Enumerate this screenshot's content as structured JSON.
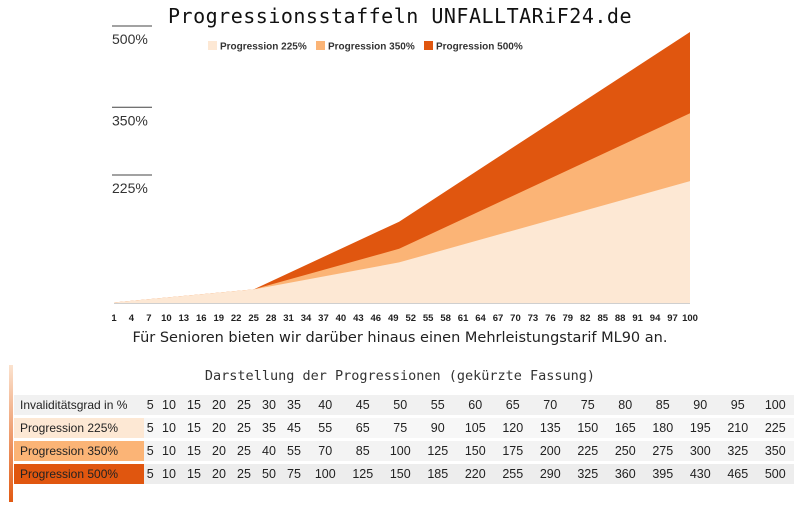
{
  "page": {
    "title": "Progressionsstaffeln UNFALLTARiF24.de",
    "subtitle": "Für Senioren bieten wir darüber hinaus einen Mehrleistungstarif ML90 an."
  },
  "chart_data": {
    "type": "area",
    "stacked": false,
    "title": "Progressionsstaffeln UNFALLTARiF24.de",
    "legend_position": "top",
    "x": [
      1,
      4,
      7,
      10,
      13,
      16,
      19,
      22,
      25,
      28,
      31,
      34,
      37,
      40,
      43,
      46,
      49,
      52,
      55,
      58,
      61,
      64,
      67,
      70,
      73,
      76,
      79,
      82,
      85,
      88,
      91,
      94,
      97,
      100
    ],
    "x_ticks": [
      "1",
      "4",
      "7",
      "10",
      "13",
      "16",
      "19",
      "22",
      "25",
      "28",
      "31",
      "34",
      "37",
      "40",
      "43",
      "46",
      "49",
      "52",
      "55",
      "58",
      "61",
      "64",
      "67",
      "70",
      "73",
      "76",
      "79",
      "82",
      "85",
      "88",
      "91",
      "94",
      "97",
      "100"
    ],
    "y_ticks": [
      {
        "value": 225,
        "label": "225%"
      },
      {
        "value": 350,
        "label": "350%"
      },
      {
        "value": 500,
        "label": "500%"
      }
    ],
    "xlim": [
      1,
      100
    ],
    "ylim": [
      0,
      500
    ],
    "series": [
      {
        "name": "Progression 500%",
        "color": "#e0560f",
        "x": [
          1,
          25,
          50,
          100
        ],
        "values": [
          1,
          25,
          150,
          500
        ]
      },
      {
        "name": "Progression 350%",
        "color": "#fbb476",
        "x": [
          1,
          25,
          50,
          100
        ],
        "values": [
          1,
          25,
          100,
          350
        ]
      },
      {
        "name": "Progression 225%",
        "color": "#fde8d4",
        "x": [
          1,
          25,
          50,
          100
        ],
        "values": [
          1,
          25,
          75,
          225
        ]
      }
    ],
    "legend": [
      {
        "label": "Progression 225%",
        "color": "#fde8d4"
      },
      {
        "label": "Progression 350%",
        "color": "#fbb476"
      },
      {
        "label": "Progression 500%",
        "color": "#e0560f"
      }
    ]
  },
  "table": {
    "title": "Darstellung der Progressionen (gekürzte Fassung)",
    "header_label": "Invaliditätsgrad in %",
    "header": [
      "5",
      "10",
      "15",
      "20",
      "25",
      "30",
      "35",
      "40",
      "45",
      "50",
      "55",
      "60",
      "65",
      "70",
      "75",
      "80",
      "85",
      "90",
      "95",
      "100"
    ],
    "rows": [
      {
        "label": "Progression 225%",
        "color": "#fde8d4",
        "values": [
          "5",
          "10",
          "15",
          "20",
          "25",
          "35",
          "45",
          "55",
          "65",
          "75",
          "90",
          "105",
          "120",
          "135",
          "150",
          "165",
          "180",
          "195",
          "210",
          "225"
        ]
      },
      {
        "label": "Progression 350%",
        "color": "#fbb476",
        "values": [
          "5",
          "10",
          "15",
          "20",
          "25",
          "40",
          "55",
          "70",
          "85",
          "100",
          "125",
          "150",
          "175",
          "200",
          "225",
          "250",
          "275",
          "300",
          "325",
          "350"
        ]
      },
      {
        "label": "Progression 500%",
        "color": "#e0560f",
        "values": [
          "5",
          "10",
          "15",
          "20",
          "25",
          "50",
          "75",
          "100",
          "125",
          "150",
          "185",
          "220",
          "255",
          "290",
          "325",
          "360",
          "395",
          "430",
          "465",
          "500"
        ]
      }
    ]
  }
}
